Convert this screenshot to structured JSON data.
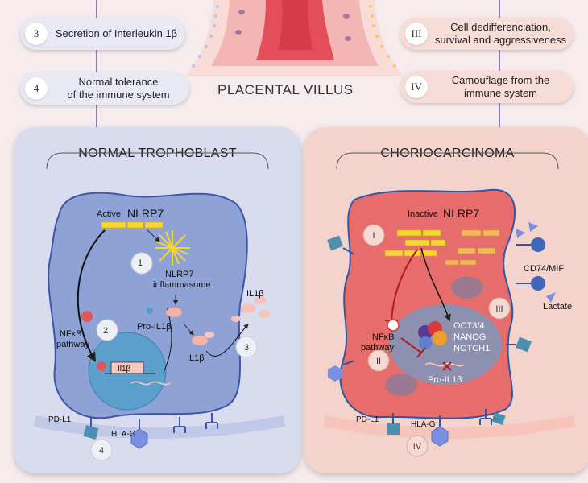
{
  "header": {
    "center_label": "PLACENTAL VILLUS"
  },
  "left_items": [
    {
      "num": "3",
      "text": "Secretion of Interleukin 1β"
    },
    {
      "num": "4",
      "text_line1": "Normal tolerance",
      "text_line2": "of the immune system"
    }
  ],
  "right_items": [
    {
      "num": "III",
      "text_line1": "Cell dedifferenciation,",
      "text_line2": "survival and aggressiveness"
    },
    {
      "num": "IV",
      "text_line1": "Camouflage from the",
      "text_line2": "immune system"
    }
  ],
  "normal": {
    "title": "NORMAL TROPHOBLAST",
    "active_prefix": "Active",
    "nlrp7": "NLRP7",
    "inflammasome_line1": "NLRP7",
    "inflammasome_line2": "inflammasome",
    "step1": "1",
    "step2": "2",
    "step3": "3",
    "step4": "4",
    "nfkb_line1": "NFκB",
    "nfkb_line2": "pathway",
    "pro_il1b": "Pro-IL1β",
    "il1b_inner": "IL1β",
    "il1b_outer": "IL1β",
    "gene": "Il1β",
    "pdl1": "PD-L1",
    "hlag": "HLA-G"
  },
  "chorio": {
    "title": "CHORIOCARCINOMA",
    "inactive_prefix": "Inactive",
    "nlrp7": "NLRP7",
    "stepI": "I",
    "stepII": "II",
    "stepIII": "III",
    "stepIV": "IV",
    "nfkb_line1": "NFκB",
    "nfkb_line2": "pathway",
    "oct": "OCT3/4",
    "nanog": "NANOG",
    "notch": "NOTCH1",
    "pro_il1b": "Pro-IL1β",
    "cd74": "CD74/MIF",
    "lactate": "Lactate",
    "pdl1": "PD-L1",
    "hlag": "HLA-G"
  },
  "colors": {
    "normal_cell": "#8fa2d6",
    "nucleus_normal": "#5b9fcc",
    "tumor_cell": "#e66d6b",
    "nucleus_tumor": "#8d90ae",
    "nlrp7_yellow": "#f4d630",
    "nlrp7_orange": "#f2b85a",
    "receptor_teal": "#4c8fb2",
    "hla_blue": "#7b8fe0"
  }
}
